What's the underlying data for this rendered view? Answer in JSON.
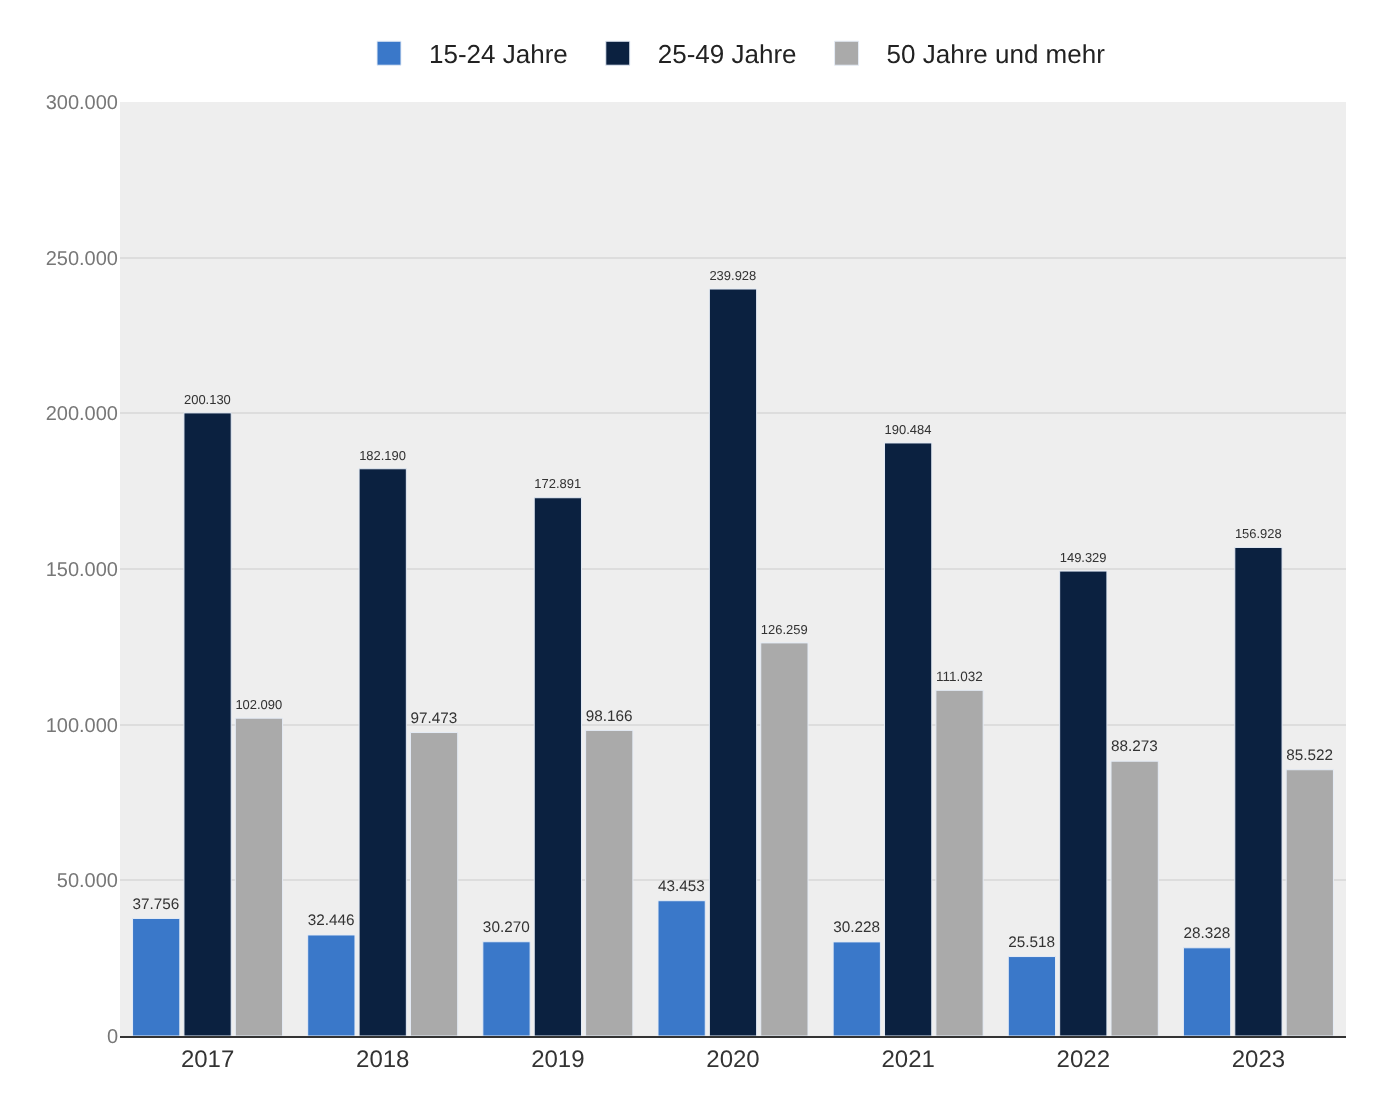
{
  "chart_data": {
    "type": "bar",
    "categories": [
      "2017",
      "2018",
      "2019",
      "2020",
      "2021",
      "2022",
      "2023"
    ],
    "series": [
      {
        "name": "15-24 Jahre",
        "color": "#3a78c9",
        "values": [
          37756,
          32446,
          30270,
          43453,
          30228,
          25518,
          28328
        ],
        "value_labels": [
          "37.756",
          "32.446",
          "30.270",
          "43.453",
          "30.228",
          "25.518",
          "28.328"
        ]
      },
      {
        "name": "25-49 Jahre",
        "color": "#0b2140",
        "values": [
          200130,
          182190,
          172891,
          239928,
          190484,
          149329,
          156928
        ],
        "value_labels": [
          "200.130",
          "182.190",
          "172.891",
          "239.928",
          "190.484",
          "149.329",
          "156.928"
        ]
      },
      {
        "name": "50 Jahre und mehr",
        "color": "#aaaaaa",
        "values": [
          102090,
          97473,
          98166,
          126259,
          111032,
          88273,
          85522
        ],
        "value_labels": [
          "102.090",
          "97.473",
          "98.166",
          "126.259",
          "111.032",
          "88.273",
          "85.522"
        ]
      }
    ],
    "ylim": [
      0,
      300000
    ],
    "yticks": [
      {
        "value": 0,
        "label": "0"
      },
      {
        "value": 50000,
        "label": "50.000"
      },
      {
        "value": 100000,
        "label": "100.000"
      },
      {
        "value": 150000,
        "label": "150.000"
      },
      {
        "value": 200000,
        "label": "200.000"
      },
      {
        "value": 250000,
        "label": "250.000"
      },
      {
        "value": 300000,
        "label": "300.000"
      }
    ],
    "grid": "y",
    "legend": "top"
  }
}
